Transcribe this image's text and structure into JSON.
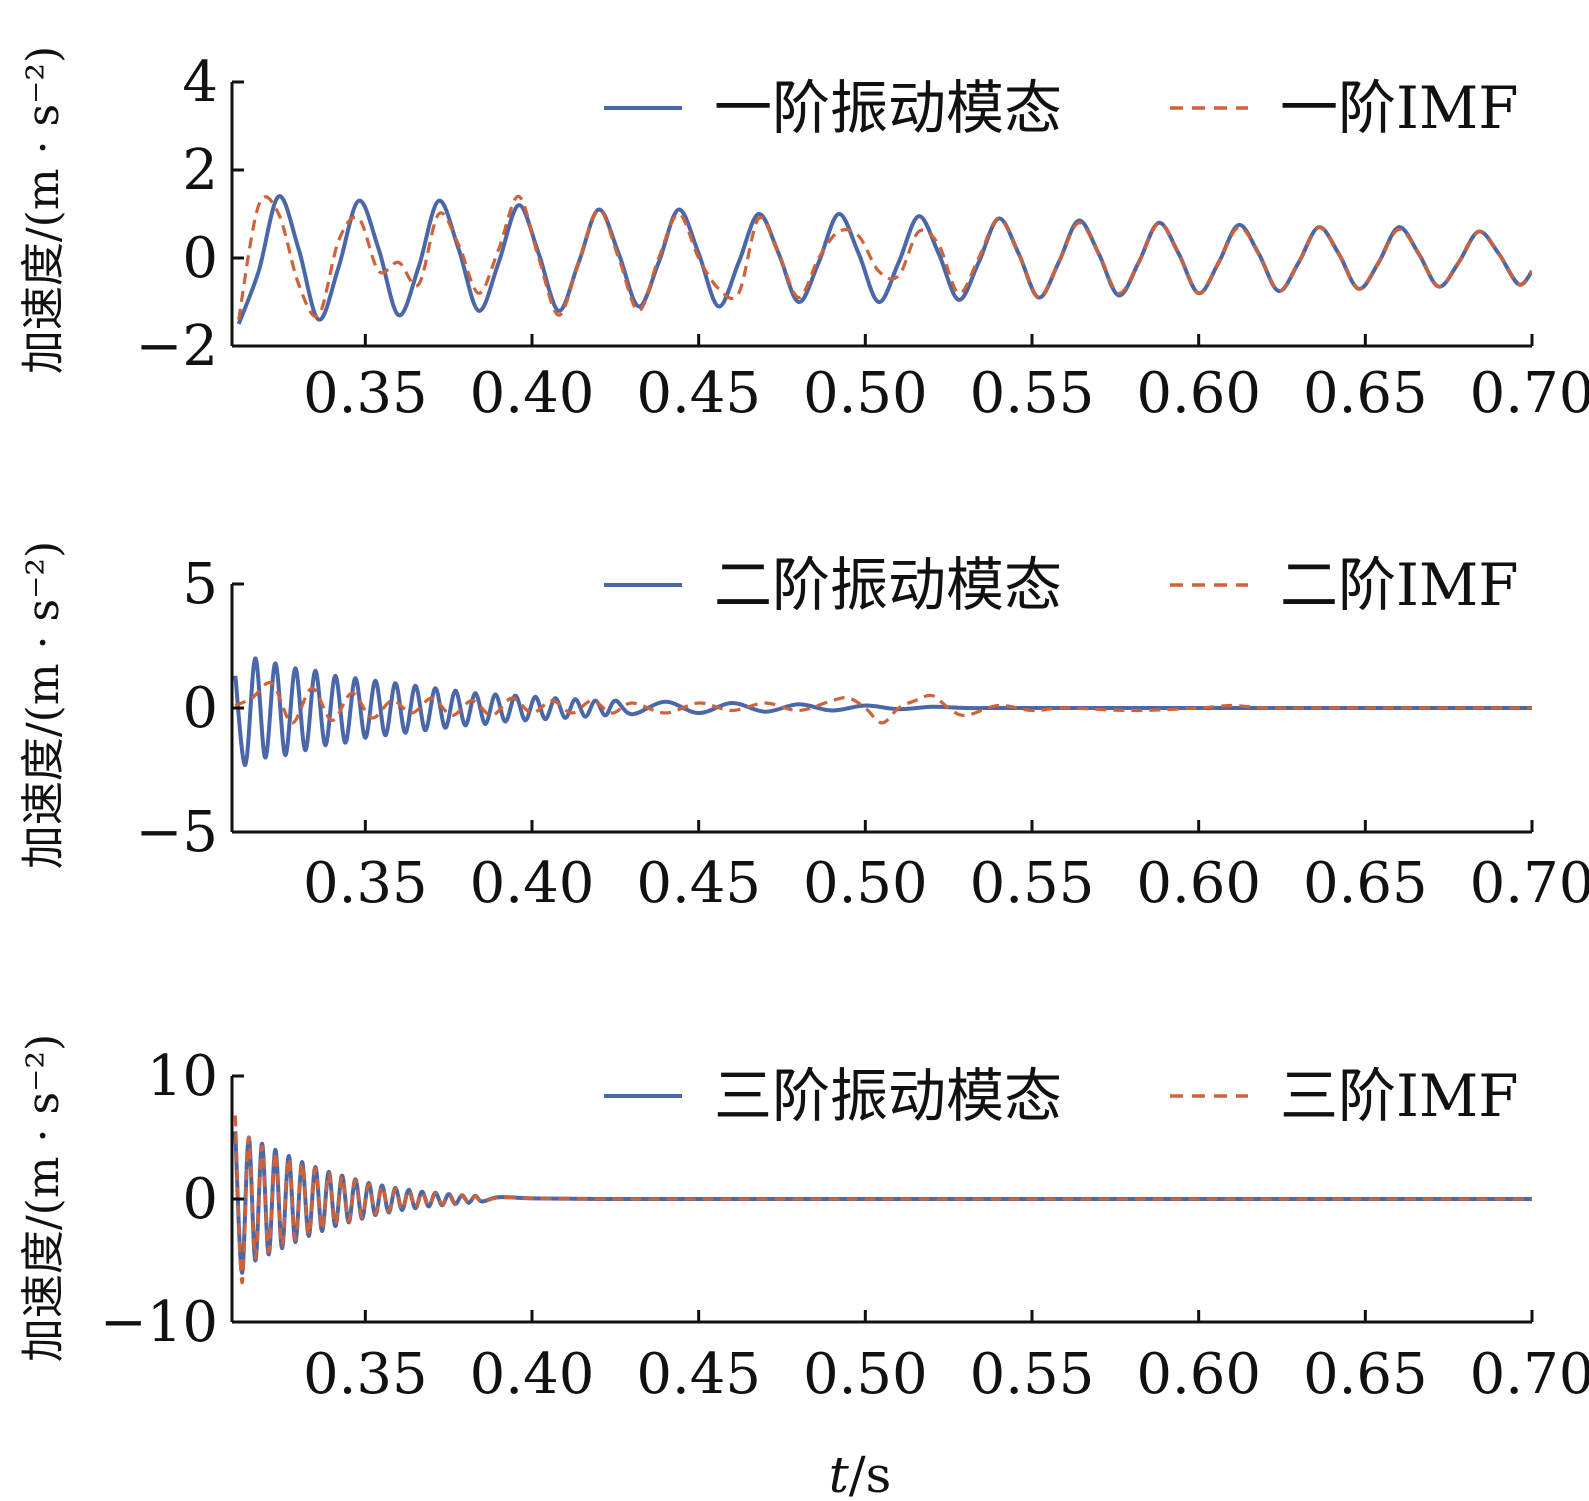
{
  "colors": {
    "mode": "#4a68a8",
    "imf": "#d0623a"
  },
  "xlabel": {
    "var": "t",
    "unit": "/s"
  },
  "chart_data": [
    {
      "type": "line",
      "ylabel": "加速度/(m · s⁻²)",
      "xlim": [
        0.31,
        0.7
      ],
      "ylim": [
        -2,
        4
      ],
      "xticks": [
        "0.35",
        "0.40",
        "0.45",
        "0.50",
        "0.55",
        "0.60",
        "0.65",
        "0.70"
      ],
      "yticks": [
        "4",
        "2",
        "0",
        "−2"
      ],
      "ytick_values": [
        4,
        2,
        0,
        -2
      ],
      "series": [
        {
          "name": "一阶振动模态",
          "style": "solid",
          "x": [
            0.312,
            0.318,
            0.324,
            0.33,
            0.336,
            0.342,
            0.348,
            0.354,
            0.36,
            0.366,
            0.372,
            0.378,
            0.384,
            0.39,
            0.396,
            0.402,
            0.408,
            0.414,
            0.42,
            0.426,
            0.432,
            0.438,
            0.444,
            0.45,
            0.456,
            0.462,
            0.468,
            0.474,
            0.48,
            0.486,
            0.492,
            0.498,
            0.504,
            0.51,
            0.516,
            0.522,
            0.528,
            0.534,
            0.54,
            0.546,
            0.552,
            0.558,
            0.564,
            0.57,
            0.576,
            0.582,
            0.588,
            0.594,
            0.6,
            0.606,
            0.612,
            0.618,
            0.624,
            0.63,
            0.636,
            0.642,
            0.648,
            0.654,
            0.66,
            0.666,
            0.672,
            0.678,
            0.684,
            0.69,
            0.696,
            0.7
          ],
          "y": [
            -1.5,
            -0.3,
            1.4,
            0.2,
            -1.4,
            -0.2,
            1.3,
            0.2,
            -1.3,
            -0.2,
            1.3,
            0.2,
            -1.2,
            -0.1,
            1.2,
            0.1,
            -1.2,
            -0.1,
            1.1,
            0.1,
            -1.1,
            -0.1,
            1.1,
            0.1,
            -1.1,
            -0.1,
            1.0,
            0.1,
            -1.0,
            -0.1,
            1.0,
            0.1,
            -1.0,
            -0.1,
            0.95,
            0.1,
            -0.95,
            -0.1,
            0.9,
            0.1,
            -0.9,
            -0.1,
            0.85,
            0.1,
            -0.85,
            -0.1,
            0.8,
            0.1,
            -0.8,
            -0.1,
            0.75,
            0.1,
            -0.75,
            -0.1,
            0.7,
            0.1,
            -0.7,
            -0.1,
            0.7,
            0.1,
            -0.65,
            -0.1,
            0.6,
            0.1,
            -0.6,
            -0.3
          ]
        },
        {
          "name": "一阶IMF",
          "style": "dashed",
          "x": [
            0.312,
            0.318,
            0.324,
            0.33,
            0.336,
            0.342,
            0.348,
            0.354,
            0.36,
            0.366,
            0.372,
            0.378,
            0.384,
            0.39,
            0.396,
            0.402,
            0.408,
            0.414,
            0.42,
            0.426,
            0.432,
            0.438,
            0.444,
            0.45,
            0.456,
            0.462,
            0.468,
            0.474,
            0.48,
            0.486,
            0.492,
            0.498,
            0.504,
            0.51,
            0.516,
            0.522,
            0.528,
            0.534,
            0.54,
            0.546,
            0.552,
            0.558,
            0.564,
            0.57,
            0.576,
            0.582,
            0.588,
            0.594,
            0.6,
            0.606,
            0.612,
            0.618,
            0.624,
            0.63,
            0.636,
            0.642,
            0.648,
            0.654,
            0.66,
            0.666,
            0.672,
            0.678,
            0.684,
            0.69,
            0.696,
            0.7
          ],
          "y": [
            -1.4,
            1.2,
            1.0,
            -0.6,
            -1.3,
            0.4,
            0.9,
            -0.3,
            -0.1,
            -0.6,
            1.0,
            0.3,
            -0.8,
            0.2,
            1.4,
            0.0,
            -1.3,
            -0.1,
            1.1,
            0.0,
            -1.2,
            0.0,
            1.0,
            0.0,
            -0.7,
            -0.8,
            0.9,
            0.1,
            -0.9,
            0.0,
            0.6,
            0.5,
            -0.3,
            -0.4,
            0.6,
            0.3,
            -0.8,
            0.0,
            0.9,
            0.1,
            -0.9,
            -0.1,
            0.8,
            0.1,
            -0.8,
            -0.1,
            0.8,
            0.1,
            -0.8,
            -0.1,
            0.7,
            0.1,
            -0.75,
            -0.1,
            0.7,
            0.1,
            -0.7,
            -0.1,
            0.65,
            0.1,
            -0.65,
            -0.1,
            0.6,
            0.1,
            -0.6,
            -0.3
          ]
        }
      ]
    },
    {
      "type": "line",
      "ylabel": "加速度/(m · s⁻²)",
      "xlim": [
        0.31,
        0.7
      ],
      "ylim": [
        -5,
        5
      ],
      "xticks": [
        "0.35",
        "0.40",
        "0.45",
        "0.50",
        "0.55",
        "0.60",
        "0.65",
        "0.70"
      ],
      "yticks": [
        "5",
        "0",
        "−5"
      ],
      "ytick_values": [
        5,
        0,
        -5
      ],
      "series": [
        {
          "name": "二阶振动模态",
          "style": "solid",
          "x": [
            0.311,
            0.314,
            0.317,
            0.32,
            0.323,
            0.326,
            0.329,
            0.332,
            0.335,
            0.338,
            0.341,
            0.344,
            0.347,
            0.35,
            0.353,
            0.356,
            0.359,
            0.362,
            0.365,
            0.368,
            0.371,
            0.374,
            0.377,
            0.38,
            0.383,
            0.386,
            0.389,
            0.392,
            0.395,
            0.398,
            0.401,
            0.404,
            0.407,
            0.41,
            0.413,
            0.416,
            0.419,
            0.422,
            0.425,
            0.43,
            0.44,
            0.45,
            0.46,
            0.47,
            0.48,
            0.49,
            0.5,
            0.51,
            0.52,
            0.53,
            0.54,
            0.55,
            0.56,
            0.58,
            0.6,
            0.62,
            0.65,
            0.68,
            0.7
          ],
          "y": [
            1.3,
            -2.3,
            2.0,
            -2.0,
            1.8,
            -1.9,
            1.6,
            -1.7,
            1.5,
            -1.5,
            1.3,
            -1.4,
            1.2,
            -1.2,
            1.1,
            -1.1,
            1.0,
            -1.0,
            0.9,
            -0.9,
            0.8,
            -0.8,
            0.7,
            -0.7,
            0.6,
            -0.65,
            0.55,
            -0.55,
            0.5,
            -0.5,
            0.45,
            -0.45,
            0.4,
            -0.4,
            0.35,
            -0.35,
            0.3,
            -0.3,
            0.3,
            -0.25,
            0.25,
            -0.2,
            0.2,
            -0.15,
            0.15,
            -0.1,
            0.1,
            -0.05,
            0.05,
            0.0,
            0.0,
            0.0,
            0.0,
            0.0,
            0.0,
            0.0,
            0.0,
            0.0,
            0.0
          ]
        },
        {
          "name": "二阶IMF",
          "style": "dashed",
          "x": [
            0.311,
            0.316,
            0.322,
            0.328,
            0.334,
            0.34,
            0.346,
            0.352,
            0.358,
            0.364,
            0.37,
            0.376,
            0.382,
            0.388,
            0.394,
            0.4,
            0.406,
            0.412,
            0.418,
            0.424,
            0.43,
            0.44,
            0.45,
            0.46,
            0.47,
            0.48,
            0.49,
            0.495,
            0.5,
            0.505,
            0.51,
            0.515,
            0.52,
            0.525,
            0.53,
            0.54,
            0.55,
            0.56,
            0.58,
            0.6,
            0.61,
            0.62,
            0.64,
            0.66,
            0.68,
            0.7
          ],
          "y": [
            0.1,
            0.4,
            1.0,
            -0.6,
            0.8,
            -0.5,
            0.6,
            -0.4,
            0.3,
            -0.2,
            0.4,
            -0.3,
            0.3,
            -0.3,
            0.4,
            -0.2,
            0.3,
            -0.2,
            0.3,
            -0.2,
            0.2,
            -0.2,
            0.2,
            -0.1,
            0.2,
            -0.1,
            0.3,
            0.4,
            0.0,
            -0.6,
            0.0,
            0.3,
            0.5,
            0.0,
            -0.3,
            0.1,
            -0.1,
            0.0,
            -0.1,
            0.0,
            0.1,
            0.0,
            0.0,
            0.0,
            0.0,
            0.0
          ]
        }
      ]
    },
    {
      "type": "line",
      "ylabel": "加速度/(m · s⁻²)",
      "xlim": [
        0.31,
        0.7
      ],
      "ylim": [
        -10,
        10
      ],
      "xticks": [
        "0.35",
        "0.40",
        "0.45",
        "0.50",
        "0.55",
        "0.60",
        "0.65",
        "0.70"
      ],
      "yticks": [
        "10",
        "0",
        "−10"
      ],
      "ytick_values": [
        10,
        0,
        -10
      ],
      "series": [
        {
          "name": "三阶振动模态",
          "style": "solid",
          "x": [
            0.311,
            0.313,
            0.315,
            0.317,
            0.319,
            0.321,
            0.323,
            0.325,
            0.327,
            0.329,
            0.331,
            0.333,
            0.335,
            0.337,
            0.339,
            0.341,
            0.343,
            0.345,
            0.347,
            0.349,
            0.351,
            0.353,
            0.355,
            0.357,
            0.359,
            0.361,
            0.363,
            0.365,
            0.367,
            0.369,
            0.371,
            0.373,
            0.375,
            0.377,
            0.379,
            0.381,
            0.383,
            0.385,
            0.39,
            0.4,
            0.42,
            0.45,
            0.5,
            0.6,
            0.7
          ],
          "y": [
            5.5,
            -6.0,
            5.0,
            -5.0,
            4.5,
            -4.5,
            4.0,
            -4.0,
            3.5,
            -3.5,
            3.0,
            -3.0,
            2.6,
            -2.6,
            2.2,
            -2.2,
            1.9,
            -1.9,
            1.6,
            -1.6,
            1.3,
            -1.3,
            1.1,
            -1.1,
            0.9,
            -0.9,
            0.75,
            -0.75,
            0.6,
            -0.6,
            0.5,
            -0.5,
            0.4,
            -0.4,
            0.3,
            -0.3,
            0.25,
            -0.2,
            0.15,
            0.05,
            0.0,
            0.0,
            0.0,
            0.0,
            0.0
          ]
        },
        {
          "name": "三阶IMF",
          "style": "dashed",
          "x": [
            0.311,
            0.313,
            0.315,
            0.317,
            0.319,
            0.321,
            0.323,
            0.325,
            0.327,
            0.329,
            0.331,
            0.333,
            0.335,
            0.337,
            0.339,
            0.341,
            0.343,
            0.345,
            0.347,
            0.349,
            0.351,
            0.353,
            0.355,
            0.357,
            0.359,
            0.361,
            0.363,
            0.365,
            0.367,
            0.369,
            0.371,
            0.373,
            0.375,
            0.377,
            0.379,
            0.381,
            0.383,
            0.385,
            0.39,
            0.4,
            0.42,
            0.45,
            0.5,
            0.6,
            0.7
          ],
          "y": [
            6.8,
            -6.8,
            5.0,
            -4.8,
            4.3,
            -4.3,
            3.8,
            -3.8,
            3.3,
            -3.3,
            2.9,
            -2.9,
            2.5,
            -2.5,
            2.1,
            -2.1,
            1.8,
            -1.8,
            1.5,
            -1.5,
            1.2,
            -1.2,
            1.0,
            -1.0,
            0.85,
            -0.85,
            0.7,
            -0.7,
            0.55,
            -0.55,
            0.45,
            -0.45,
            0.35,
            -0.35,
            0.3,
            -0.3,
            0.2,
            -0.2,
            0.1,
            0.05,
            0.0,
            0.0,
            0.0,
            0.0,
            0.0
          ]
        }
      ]
    }
  ]
}
